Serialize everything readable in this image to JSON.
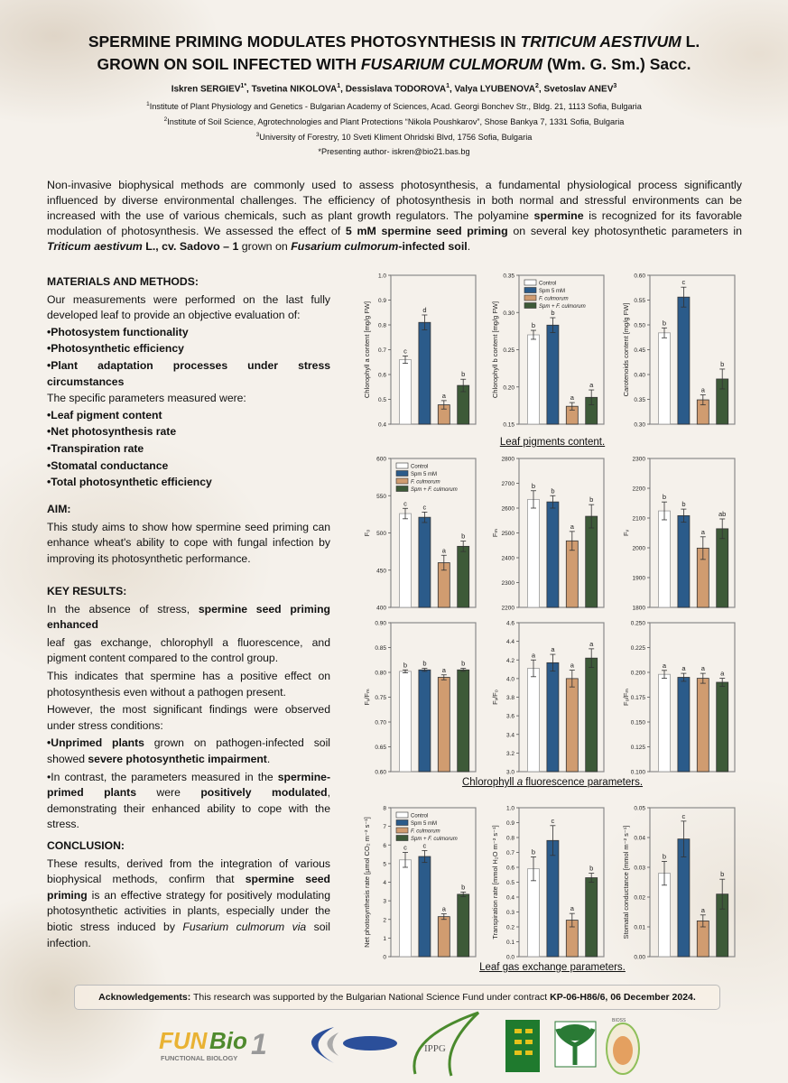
{
  "title": {
    "line1": [
      {
        "t": "SPERMINE PRIMING MODULATES PHOTOSYNTHESIS IN "
      },
      {
        "t": "TRITICUM AESTIVUM",
        "i": true
      },
      {
        "t": " L."
      }
    ],
    "line2": [
      {
        "t": "GROWN ON SOIL INFECTED WITH "
      },
      {
        "t": "FUSARIUM CULMORUM",
        "i": true
      },
      {
        "t": " (Wm. G. Sm.) Sacc."
      }
    ]
  },
  "authors": [
    {
      "t": "Iskren SERGIEV"
    },
    {
      "t": "1*",
      "sup": true
    },
    {
      "t": ", Tsvetina NIKOLOVA"
    },
    {
      "t": "1",
      "sup": true
    },
    {
      "t": ", Dessislava TODOROVA"
    },
    {
      "t": "1",
      "sup": true
    },
    {
      "t": ", Valya LYUBENOVA"
    },
    {
      "t": "2",
      "sup": true
    },
    {
      "t": ", Svetoslav ANEV"
    },
    {
      "t": "3",
      "sup": true
    }
  ],
  "affiliations": [
    [
      {
        "t": "1",
        "sup": true
      },
      {
        "t": "Institute of Plant Physiology and Genetics - Bulgarian Academy of Sciences, Acad. Georgi Bonchev Str., Bldg. 21, 1113 Sofia, Bulgaria"
      }
    ],
    [
      {
        "t": "2",
        "sup": true
      },
      {
        "t": "Institute of Soil Science, Agrotechnologies and Plant Protections “Nikola Poushkarov”, Shose Bankya 7, 1331 Sofia, Bulgaria"
      }
    ],
    [
      {
        "t": "3",
        "sup": true
      },
      {
        "t": "University of Forestry, 10 Sveti Kliment Ohridski Blvd, 1756 Sofia, Bulgaria"
      }
    ],
    [
      {
        "t": "*Presenting author- iskren@bio21.bas.bg"
      }
    ]
  ],
  "intro": [
    {
      "t": "Non-invasive biophysical methods are commonly used to assess photosynthesis, a fundamental physiological process significantly influenced by diverse environmental challenges. The efficiency of photosynthesis in both normal and stressful environments can be increased with the use of various chemicals, such as plant growth regulators. The polyamine "
    },
    {
      "t": "spermine",
      "b": true
    },
    {
      "t": " is recognized for its favorable modulation of photosynthesis. We assessed the effect of "
    },
    {
      "t": "5 mM spermine seed priming",
      "b": true
    },
    {
      "t": " on several key photosynthetic parameters in "
    },
    {
      "t": "Triticum aestivum",
      "b": true,
      "i": true
    },
    {
      "t": " L., cv. Sadovo – 1",
      "b": true
    },
    {
      "t": " grown on "
    },
    {
      "t": "Fusarium culmorum",
      "b": true,
      "i": true
    },
    {
      "t": "-infected soil",
      "b": true
    },
    {
      "t": "."
    }
  ],
  "methods": {
    "heading": "MATERIALS AND METHODS:",
    "paragraphs": [
      [
        {
          "t": "Our measurements were performed on the last fully developed leaf to provide an objective evaluation of:"
        }
      ],
      [
        {
          "t": "•Photosystem functionality",
          "b": true
        }
      ],
      [
        {
          "t": "•Photosynthetic efficiency",
          "b": true
        }
      ],
      [
        {
          "t": "•Plant adaptation processes under stress circumstances",
          "b": true
        }
      ],
      [
        {
          "t": "The specific parameters measured were:"
        }
      ],
      [
        {
          "t": "•Leaf pigment content",
          "b": true
        }
      ],
      [
        {
          "t": "•Net photosynthesis rate",
          "b": true
        }
      ],
      [
        {
          "t": "•Transpiration rate",
          "b": true
        }
      ],
      [
        {
          "t": "•Stomatal conductance",
          "b": true
        }
      ],
      [
        {
          "t": "•Total photosynthetic efficiency",
          "b": true
        }
      ]
    ]
  },
  "aim": {
    "heading": "AIM:",
    "paragraphs": [
      [
        {
          "t": "This study aims to show how spermine seed priming can enhance wheat's ability to cope with fungal infection by improving its photosynthetic performance."
        }
      ]
    ]
  },
  "key_results": {
    "heading": "KEY RESULTS:",
    "paragraphs": [
      [
        {
          "t": "In the absence of stress, "
        },
        {
          "t": "spermine seed priming enhanced",
          "b": true
        }
      ],
      [
        {
          "t": "leaf gas exchange, chlorophyll a fluorescence, and pigment content compared to the control group."
        }
      ],
      [
        {
          "t": "This indicates that spermine has a positive effect on photosynthesis even without a pathogen present."
        }
      ],
      [
        {
          "t": "However, the most significant findings were observed under stress conditions:"
        }
      ],
      [
        {
          "t": "•Unprimed plants",
          "b": true
        },
        {
          "t": " grown on pathogen-infected soil showed "
        },
        {
          "t": "severe photosynthetic impairment",
          "b": true
        },
        {
          "t": "."
        }
      ],
      [
        {
          "t": "•In contrast, the parameters measured in the "
        },
        {
          "t": "spermine-primed plants",
          "b": true
        },
        {
          "t": " were "
        },
        {
          "t": "positively modulated",
          "b": true
        },
        {
          "t": ", demonstrating their enhanced ability to cope with the stress."
        }
      ]
    ]
  },
  "conclusion": {
    "heading": "CONCLUSION:",
    "paragraphs": [
      [
        {
          "t": "These results, derived from the integration of various biophysical methods, confirm that "
        },
        {
          "t": "spermine seed priming",
          "b": true
        },
        {
          "t": " is an effective strategy for positively modulating photosynthetic activities in plants, especially under the biotic stress induced by "
        },
        {
          "t": "Fusarium culmorum via",
          "i": true
        },
        {
          "t": " soil infection."
        }
      ]
    ]
  },
  "captions": [
    [
      {
        "t": "Leaf pigments content."
      }
    ],
    [
      {
        "t": "Chlorophyll "
      },
      {
        "t": "a",
        "i": true
      },
      {
        "t": " fluorescence parameters."
      }
    ],
    [
      {
        "t": "Leaf gas exchange parameters."
      }
    ]
  ],
  "acknowledgements": [
    {
      "t": "Acknowledgements:",
      "b": true
    },
    {
      "t": " This research was supported by the Bulgarian National Science Fund under contract "
    },
    {
      "t": "KP-06-H86/6, 06 December 2024.",
      "b": true
    }
  ],
  "logos": [
    {
      "name": "FunBio1",
      "text": "FUN Bio 1 FUNCTIONAL BIOLOGY"
    },
    {
      "name": "swoosh-logo"
    },
    {
      "name": "IPPG",
      "text": "Institute of Plant Physiology and Genetics IPPG"
    },
    {
      "name": "wheat-logo"
    },
    {
      "name": "tree-logo"
    },
    {
      "name": "BIOSS",
      "text": "BIOSS"
    }
  ],
  "series_colors": {
    "Control": "#ffffff",
    "Spm 5 mM": "#2b5b8a",
    "F. culmorum": "#d09c70",
    "Spm + F. culmorum": "#3d5a38"
  },
  "chart_data": [
    {
      "type": "bar",
      "ylabel": "Chlorophyll a content [mg/g FW]",
      "categories": [
        "Control",
        "Spm 5 mM",
        "F. culmorum",
        "Spm + F. culmorum"
      ],
      "values": [
        0.66,
        0.81,
        0.478,
        0.556
      ],
      "errors": [
        0.015,
        0.03,
        0.017,
        0.025
      ],
      "letters": [
        "c",
        "d",
        "a",
        "b"
      ],
      "ylim": [
        0.4,
        1.0
      ],
      "ticks": [
        "0.4",
        "0.5",
        "0.6",
        "0.7",
        "0.8",
        "0.9",
        "1.0"
      ],
      "legend": "none"
    },
    {
      "type": "bar",
      "ylabel": "Chlorophyll b content [mg/g FW]",
      "categories": [
        "Control",
        "Spm 5 mM",
        "F. culmorum",
        "Spm + F. culmorum"
      ],
      "values": [
        0.27,
        0.283,
        0.174,
        0.186
      ],
      "errors": [
        0.006,
        0.01,
        0.005,
        0.01
      ],
      "letters": [
        "b",
        "b",
        "a",
        "a"
      ],
      "ylim": [
        0.15,
        0.35
      ],
      "ticks": [
        "0.15",
        "0.20",
        "0.25",
        "0.30",
        "0.35"
      ],
      "legend": "top-left"
    },
    {
      "type": "bar",
      "ylabel": "Carotenoids content [mg/g FW]",
      "categories": [
        "Control",
        "Spm 5 mM",
        "F. culmorum",
        "Spm + F. culmorum"
      ],
      "values": [
        0.484,
        0.556,
        0.349,
        0.391
      ],
      "errors": [
        0.01,
        0.02,
        0.01,
        0.02
      ],
      "letters": [
        "b",
        "c",
        "a",
        "b"
      ],
      "ylim": [
        0.3,
        0.6
      ],
      "ticks": [
        "0.30",
        "0.35",
        "0.40",
        "0.45",
        "0.50",
        "0.55",
        "0.60"
      ],
      "legend": "none"
    },
    {
      "type": "bar",
      "ylabel": "F₀",
      "categories": [
        "Control",
        "Spm 5 mM",
        "F. culmorum",
        "Spm + F. culmorum"
      ],
      "values": [
        526,
        521,
        460,
        482
      ],
      "errors": [
        7,
        7,
        10,
        7
      ],
      "letters": [
        "c",
        "c",
        "a",
        "b"
      ],
      "ylim": [
        400,
        600
      ],
      "ticks": [
        "400",
        "450",
        "500",
        "550",
        "600"
      ],
      "legend": "top-left"
    },
    {
      "type": "bar",
      "ylabel": "Fₘ",
      "categories": [
        "Control",
        "Spm 5 mM",
        "F. culmorum",
        "Spm + F. culmorum"
      ],
      "values": [
        2635,
        2625,
        2468,
        2567
      ],
      "errors": [
        35,
        25,
        38,
        47
      ],
      "letters": [
        "b",
        "b",
        "a",
        "b"
      ],
      "ylim": [
        2200,
        2800
      ],
      "ticks": [
        "2200",
        "2300",
        "2400",
        "2500",
        "2600",
        "2700",
        "2800"
      ],
      "legend": "none"
    },
    {
      "type": "bar",
      "ylabel": "Fᵥ",
      "categories": [
        "Control",
        "Spm 5 mM",
        "F. culmorum",
        "Spm + F. culmorum"
      ],
      "values": [
        2124,
        2108,
        1999,
        2064
      ],
      "errors": [
        30,
        22,
        38,
        33
      ],
      "letters": [
        "b",
        "b",
        "a",
        "ab"
      ],
      "ylim": [
        1800,
        2300
      ],
      "ticks": [
        "1800",
        "1900",
        "2000",
        "2100",
        "2200",
        "2300"
      ],
      "legend": "none"
    },
    {
      "type": "bar",
      "ylabel": "Fᵥ/Fₘ",
      "categories": [
        "Control",
        "Spm 5 mM",
        "F. culmorum",
        "Spm + F. culmorum"
      ],
      "values": [
        0.802,
        0.805,
        0.79,
        0.805
      ],
      "errors": [
        0.003,
        0.003,
        0.005,
        0.003
      ],
      "letters": [
        "b",
        "b",
        "a",
        "b"
      ],
      "ylim": [
        0.6,
        0.9
      ],
      "ticks": [
        "0.60",
        "0.65",
        "0.70",
        "0.75",
        "0.80",
        "0.85",
        "0.90"
      ],
      "legend": "none"
    },
    {
      "type": "bar",
      "ylabel": "Fᵥ/F₀",
      "categories": [
        "Control",
        "Spm 5 mM",
        "F. culmorum",
        "Spm + F. culmorum"
      ],
      "values": [
        4.11,
        4.17,
        4.0,
        4.22
      ],
      "errors": [
        0.09,
        0.09,
        0.09,
        0.1
      ],
      "letters": [
        "a",
        "a",
        "a",
        "a"
      ],
      "ylim": [
        3.0,
        4.6
      ],
      "ticks": [
        "3.0",
        "3.2",
        "3.4",
        "3.6",
        "3.8",
        "4.0",
        "4.2",
        "4.4",
        "4.6"
      ],
      "legend": "none"
    },
    {
      "type": "bar",
      "ylabel": "F₀/Fₘ",
      "categories": [
        "Control",
        "Spm 5 mM",
        "F. culmorum",
        "Spm + F. culmorum"
      ],
      "values": [
        0.198,
        0.195,
        0.194,
        0.19
      ],
      "errors": [
        0.004,
        0.004,
        0.005,
        0.004
      ],
      "letters": [
        "a",
        "a",
        "a",
        "a"
      ],
      "ylim": [
        0.1,
        0.25
      ],
      "ticks": [
        "0.100",
        "0.125",
        "0.150",
        "0.175",
        "0.200",
        "0.225",
        "0.250"
      ],
      "legend": "none"
    },
    {
      "type": "bar",
      "ylabel": "Net photosynthesis rate [µmol CO₂ m⁻² s⁻¹]",
      "categories": [
        "Control",
        "Spm 5 mM",
        "F. culmorum",
        "Spm + F. culmorum"
      ],
      "values": [
        5.2,
        5.38,
        2.15,
        3.35
      ],
      "errors": [
        0.4,
        0.32,
        0.15,
        0.12
      ],
      "letters": [
        "c",
        "c",
        "a",
        "b"
      ],
      "ylim": [
        0,
        8
      ],
      "ticks": [
        "0",
        "1",
        "2",
        "3",
        "4",
        "5",
        "6",
        "7",
        "8"
      ],
      "legend": "top-left"
    },
    {
      "type": "bar",
      "ylabel": "Transpiration rate [mmol H₂O m⁻² s⁻¹]",
      "categories": [
        "Control",
        "Spm 5 mM",
        "F. culmorum",
        "Spm + F. culmorum"
      ],
      "values": [
        0.59,
        0.78,
        0.245,
        0.53
      ],
      "errors": [
        0.08,
        0.1,
        0.045,
        0.03
      ],
      "letters": [
        "b",
        "c",
        "a",
        "b"
      ],
      "ylim": [
        0,
        1.0
      ],
      "ticks": [
        "0.0",
        "0.1",
        "0.2",
        "0.3",
        "0.4",
        "0.5",
        "0.6",
        "0.7",
        "0.8",
        "0.9",
        "1.0"
      ],
      "legend": "none"
    },
    {
      "type": "bar",
      "ylabel": "Stomatal conductance [mmol m⁻² s⁻¹]",
      "categories": [
        "Control",
        "Spm 5 mM",
        "F. culmorum",
        "Spm + F. culmorum"
      ],
      "values": [
        0.028,
        0.0395,
        0.012,
        0.021
      ],
      "errors": [
        0.004,
        0.006,
        0.002,
        0.005
      ],
      "letters": [
        "b",
        "c",
        "a",
        "b"
      ],
      "ylim": [
        0,
        0.05
      ],
      "ticks": [
        "0.00",
        "0.01",
        "0.02",
        "0.03",
        "0.04",
        "0.05"
      ],
      "legend": "none"
    }
  ]
}
